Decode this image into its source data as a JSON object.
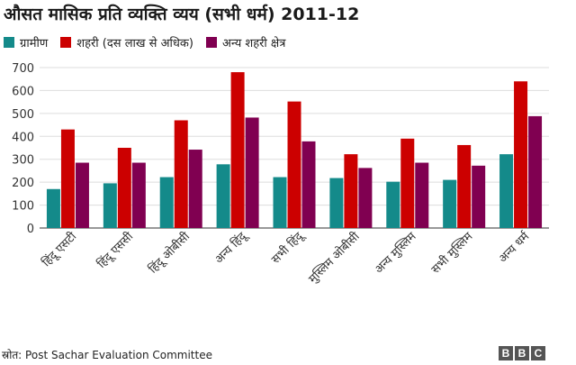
{
  "chart_data": {
    "type": "bar",
    "title": "औसत मासिक प्रति व्यक्ति व्यय (सभी धर्म) 2011-12",
    "categories": [
      "हिंदू एसटी",
      "हिंदू एससी",
      "हिंदू ओबीसी",
      "अन्य हिंदू",
      "सभी हिंदू",
      "मुस्लिम ओबीसी",
      "अन्य मुस्लिम",
      "सभी मुस्लिम",
      "अन्य धर्म"
    ],
    "series": [
      {
        "name": "ग्रामीण",
        "color": "#148a8a",
        "values": [
          170,
          195,
          222,
          278,
          222,
          218,
          202,
          210,
          322
        ]
      },
      {
        "name": "शहरी (दस लाख से अधिक)",
        "color": "#cc0000",
        "values": [
          430,
          350,
          470,
          680,
          552,
          322,
          390,
          362,
          640
        ]
      },
      {
        "name": "अन्य शहरी क्षेत्र",
        "color": "#800051",
        "values": [
          285,
          285,
          342,
          482,
          378,
          262,
          285,
          272,
          488
        ]
      }
    ],
    "y_ticks": [
      0,
      100,
      200,
      300,
      400,
      500,
      600,
      700
    ],
    "ylim": [
      0,
      700
    ],
    "grid": true,
    "legend_position": "top-left",
    "xlabel": "",
    "ylabel": ""
  },
  "source": "स्रोत: Post Sachar Evaluation Committee",
  "logo": [
    "B",
    "B",
    "C"
  ]
}
